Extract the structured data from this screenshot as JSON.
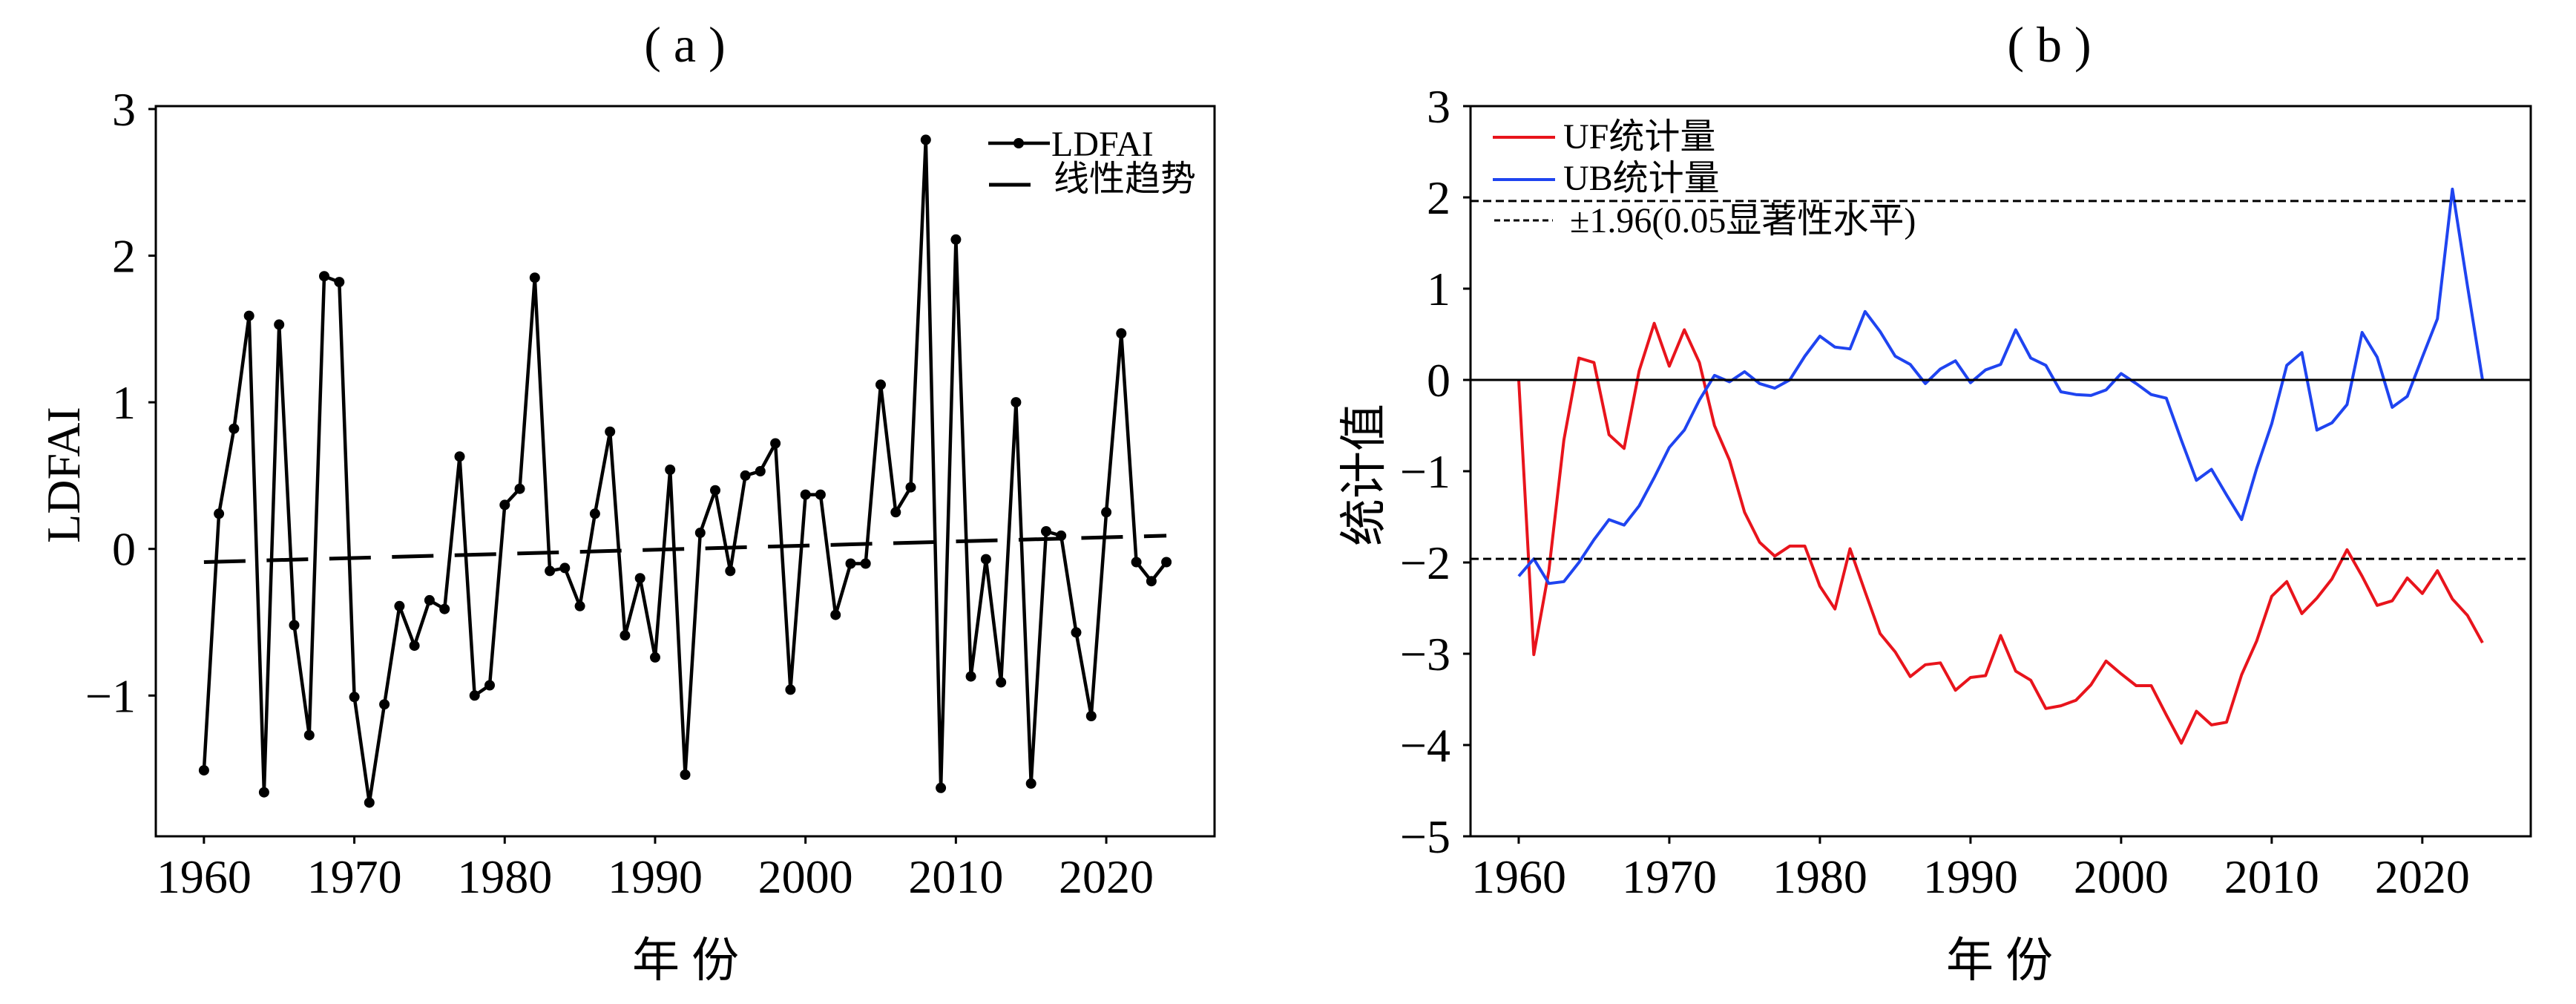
{
  "chart_data": [
    {
      "type": "line",
      "title": "( a )",
      "xlabel": "年 份",
      "ylabel": "LDFAI",
      "xlim": [
        1956.8,
        2027.2
      ],
      "ylim": [
        -1.96,
        3.02
      ],
      "grid": false,
      "xticks": [
        1960,
        1970,
        1980,
        1990,
        2000,
        2010,
        2020
      ],
      "xtick_labels": [
        "1960",
        "1970",
        "1980",
        "1990",
        "2000",
        "2010",
        "2020"
      ],
      "yticks": [
        -1,
        0,
        1,
        2,
        3
      ],
      "ytick_labels": [
        "−1",
        "0",
        "1",
        "2",
        "3"
      ],
      "x": [
        1960,
        1961,
        1962,
        1963,
        1964,
        1965,
        1966,
        1967,
        1968,
        1969,
        1970,
        1971,
        1972,
        1973,
        1974,
        1975,
        1976,
        1977,
        1978,
        1979,
        1980,
        1981,
        1982,
        1983,
        1984,
        1985,
        1986,
        1987,
        1988,
        1989,
        1990,
        1991,
        1992,
        1993,
        1994,
        1995,
        1996,
        1997,
        1998,
        1999,
        2000,
        2001,
        2002,
        2003,
        2004,
        2005,
        2006,
        2007,
        2008,
        2009,
        2010,
        2011,
        2012,
        2013,
        2014,
        2015,
        2016,
        2017,
        2018,
        2019,
        2020,
        2021,
        2022,
        2023,
        2024
      ],
      "series": [
        {
          "name": "LDFAI",
          "color": "#000000",
          "style": "solid",
          "marker": "circle",
          "values": [
            -1.51,
            0.24,
            0.82,
            1.59,
            -1.66,
            1.53,
            -0.52,
            -1.27,
            1.86,
            1.82,
            -1.01,
            -1.73,
            -1.06,
            -0.39,
            -0.66,
            -0.35,
            -0.41,
            0.63,
            -1.0,
            -0.93,
            0.3,
            0.41,
            1.85,
            -0.15,
            -0.13,
            -0.39,
            0.24,
            0.8,
            -0.59,
            -0.2,
            -0.74,
            0.54,
            -1.54,
            0.11,
            0.4,
            -0.15,
            0.5,
            0.53,
            0.72,
            -0.96,
            0.37,
            0.37,
            -0.45,
            -0.1,
            -0.1,
            1.12,
            0.25,
            0.42,
            2.79,
            -1.63,
            2.11,
            -0.87,
            -0.07,
            -0.91,
            1.0,
            -1.6,
            0.12,
            0.09,
            -0.57,
            -1.14,
            0.25,
            1.47,
            -0.09,
            -0.22,
            -0.09
          ]
        },
        {
          "name": "线性趋势",
          "color": "#000000",
          "style": "dashed",
          "marker": "none",
          "x": [
            1960,
            2024
          ],
          "values": [
            -0.09,
            0.09
          ]
        }
      ],
      "legend": {
        "position": "upper-right",
        "entries": [
          {
            "label": "LDFAI",
            "color": "#000000",
            "style": "solid",
            "marker": "circle"
          },
          {
            "label": "线性趋势",
            "color": "#000000",
            "style": "dashed"
          }
        ]
      }
    },
    {
      "type": "line",
      "title": "( b )",
      "xlabel": "年 份",
      "ylabel": "统计值",
      "xlim": [
        1956.8,
        2027.2
      ],
      "ylim": [
        -5,
        3
      ],
      "grid": false,
      "xticks": [
        1960,
        1970,
        1980,
        1990,
        2000,
        2010,
        2020
      ],
      "xtick_labels": [
        "1960",
        "1970",
        "1980",
        "1990",
        "2000",
        "2010",
        "2020"
      ],
      "yticks": [
        -5,
        -4,
        -3,
        -2,
        -1,
        0,
        1,
        2,
        3
      ],
      "ytick_labels": [
        "−5",
        "−4",
        "−3",
        "−2",
        "−1",
        "0",
        "1",
        "2",
        "3"
      ],
      "x": [
        1960,
        1961,
        1962,
        1963,
        1964,
        1965,
        1966,
        1967,
        1968,
        1969,
        1970,
        1971,
        1972,
        1973,
        1974,
        1975,
        1976,
        1977,
        1978,
        1979,
        1980,
        1981,
        1982,
        1983,
        1984,
        1985,
        1986,
        1987,
        1988,
        1989,
        1990,
        1991,
        1992,
        1993,
        1994,
        1995,
        1996,
        1997,
        1998,
        1999,
        2000,
        2001,
        2002,
        2003,
        2004,
        2005,
        2006,
        2007,
        2008,
        2009,
        2010,
        2011,
        2012,
        2013,
        2014,
        2015,
        2016,
        2017,
        2018,
        2019,
        2020,
        2021,
        2022,
        2023,
        2024
      ],
      "series": [
        {
          "name": "UF统计量",
          "color": "#e8141c",
          "style": "solid",
          "marker": "none",
          "values": [
            0.0,
            -3.01,
            -2.09,
            -0.66,
            0.24,
            0.19,
            -0.6,
            -0.75,
            0.1,
            0.62,
            0.15,
            0.55,
            0.19,
            -0.5,
            -0.88,
            -1.45,
            -1.78,
            -1.93,
            -1.82,
            -1.82,
            -2.26,
            -2.51,
            -1.85,
            -2.32,
            -2.78,
            -2.98,
            -3.25,
            -3.12,
            -3.1,
            -3.4,
            -3.26,
            -3.24,
            -2.8,
            -3.19,
            -3.29,
            -3.6,
            -3.57,
            -3.51,
            -3.34,
            -3.08,
            -3.22,
            -3.35,
            -3.35,
            -3.67,
            -3.98,
            -3.63,
            -3.78,
            -3.75,
            -3.23,
            -2.86,
            -2.37,
            -2.21,
            -2.56,
            -2.39,
            -2.18,
            -1.86,
            -2.15,
            -2.47,
            -2.42,
            -2.17,
            -2.34,
            -2.09,
            -2.4,
            -2.58,
            -2.88
          ]
        },
        {
          "name": "UB统计量",
          "color": "#1f44f0",
          "style": "solid",
          "marker": "none",
          "values": [
            -2.15,
            -1.96,
            -2.23,
            -2.21,
            -2.0,
            -1.75,
            -1.53,
            -1.59,
            -1.38,
            -1.07,
            -0.74,
            -0.55,
            -0.22,
            0.05,
            -0.02,
            0.09,
            -0.04,
            -0.09,
            0.0,
            0.26,
            0.48,
            0.36,
            0.34,
            0.75,
            0.53,
            0.26,
            0.17,
            -0.04,
            0.12,
            0.21,
            -0.03,
            0.11,
            0.17,
            0.55,
            0.24,
            0.16,
            -0.13,
            -0.16,
            -0.17,
            -0.11,
            0.07,
            -0.04,
            -0.16,
            -0.2,
            -0.66,
            -1.1,
            -0.98,
            -1.26,
            -1.53,
            -0.97,
            -0.48,
            0.16,
            0.3,
            -0.55,
            -0.47,
            -0.27,
            0.52,
            0.25,
            -0.3,
            -0.18,
            0.25,
            0.67,
            2.09,
            1.03,
            0.0
          ]
        }
      ],
      "reference_lines": [
        {
          "y": 0,
          "color": "#000000",
          "style": "solid"
        },
        {
          "y": 1.96,
          "color": "#000000",
          "style": "dashed"
        },
        {
          "y": -1.96,
          "color": "#000000",
          "style": "dashed"
        }
      ],
      "legend": {
        "position": "upper-left",
        "entries": [
          {
            "label": "UF统计量",
            "color": "#e8141c",
            "style": "solid"
          },
          {
            "label": "UB统计量",
            "color": "#1f44f0",
            "style": "solid"
          },
          {
            "label": "±1.96(0.05显著性水平)",
            "color": "#000000",
            "style": "dashed"
          }
        ]
      }
    }
  ]
}
